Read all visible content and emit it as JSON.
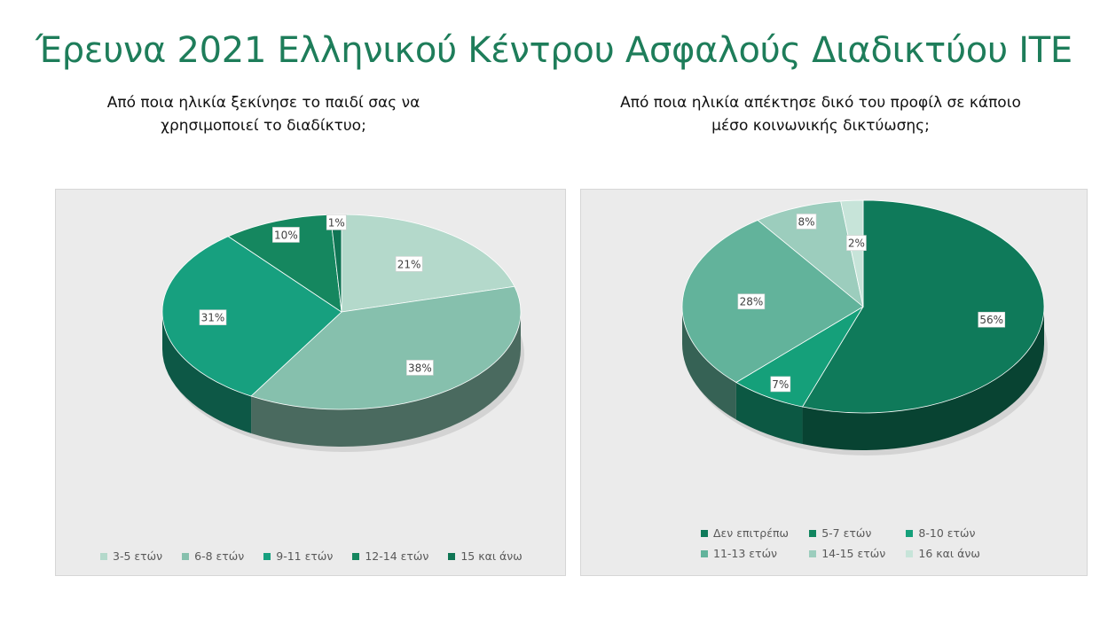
{
  "title": "Έρευνα 2021 Ελληνικού Κέντρου Ασφαλούς Διαδικτύου ΙΤΕ",
  "chart_data": [
    {
      "type": "pie",
      "title": "Από ποια ηλικία ξεκίνησε το παιδί σας να χρησιμοποιεί το διαδίκτυο;",
      "categories": [
        "3-5 ετών",
        "6-8 ετών",
        "9-11 ετών",
        "12-14 ετών",
        "15 και άνω"
      ],
      "values": [
        21,
        38,
        31,
        10,
        1
      ],
      "labels": [
        "21%",
        "38%",
        "31%",
        "10%",
        "1%"
      ],
      "colors": [
        "#b4d9cb",
        "#86c0ad",
        "#17a07f",
        "#15875f",
        "#0f7554"
      ],
      "legend": "bottom"
    },
    {
      "type": "pie",
      "title": "Από ποια ηλικία απέκτησε δικό του προφίλ σε κάποιο μέσο κοινωνικής δικτύωσης;",
      "categories": [
        "Δεν επιτρέπω",
        "5-7 ετών",
        "8-10 ετών",
        "11-13 ετών",
        "14-15 ετών",
        "16 και άνω"
      ],
      "values": [
        56,
        0,
        7,
        28,
        8,
        2
      ],
      "labels": [
        "56%",
        "",
        "7%",
        "28%",
        "8%",
        "2%"
      ],
      "colors": [
        "#0f7a5a",
        "#11855f",
        "#15a07a",
        "#62b39b",
        "#9ccdbd",
        "#c7e4d9"
      ],
      "legend": "bottom"
    }
  ],
  "questions": {
    "left_line1": "Από ποια ηλικία ξεκίνησε το παιδί σας να",
    "left_line2": "χρησιμοποιεί το διαδίκτυο;",
    "right_line1": "Από ποια ηλικία απέκτησε δικό του προφίλ σε κάποιο",
    "right_line2": "μέσο κοινωνικής δικτύωσης;"
  }
}
